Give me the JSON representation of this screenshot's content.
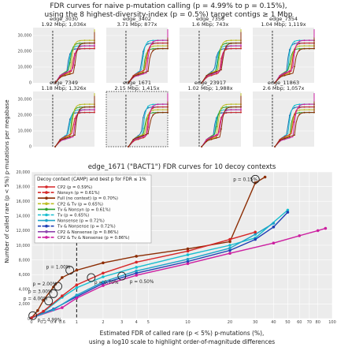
{
  "figure": {
    "title_line1": "FDR curves for naive p-mutation calling (p = 4.99% to p = 0.15%),",
    "title_line2": "using the 8 highest-diversity-index (p = 0.5%) target contigs ≥ 1 Mbp",
    "ylabel": "Number of called rare (p < 5%) p-mutations per megabase"
  },
  "chart_data": [
    {
      "type": "line",
      "title": "edge_3030",
      "subtitle": "1.92 Mbp; 1,036x",
      "yticks": [
        "0",
        "10,000",
        "20,000",
        "30,000"
      ],
      "ylim": [
        0,
        35000
      ]
    },
    {
      "type": "line",
      "title": "edge_3402",
      "subtitle": "3.71 Mbp; 877x",
      "ylim": [
        0,
        35000
      ]
    },
    {
      "type": "line",
      "title": "edge_7356",
      "subtitle": "1.6 Mbp; 743x",
      "ylim": [
        0,
        35000
      ]
    },
    {
      "type": "line",
      "title": "edge_7354",
      "subtitle": "1.04 Mbp; 1,119x",
      "ylim": [
        0,
        35000
      ]
    },
    {
      "type": "line",
      "title": "edge_7349",
      "subtitle": "1.18 Mbp; 1,326x",
      "yticks": [
        "0",
        "10,000",
        "20,000",
        "30,000"
      ],
      "ylim": [
        0,
        35000
      ]
    },
    {
      "type": "line",
      "title": "edge_1671",
      "subtitle": "2.15 Mbp; 1,415x",
      "ylim": [
        0,
        35000
      ]
    },
    {
      "type": "line",
      "title": "edge_23917",
      "subtitle": "1.02 Mbp; 1,988x",
      "ylim": [
        0,
        35000
      ]
    },
    {
      "type": "line",
      "title": "edge_11863",
      "subtitle": "2.6 Mbp; 1,057x",
      "ylim": [
        0,
        35000
      ]
    },
    {
      "type": "line",
      "title": "edge_1671 (\"BACT1\") FDR curves for 10 decoy contexts",
      "xlabel": "Estimated FDR of called rare (p < 5%) p-mutations (%),",
      "xlabel2": "using a log10 scale to highlight order-of-magnitude differences",
      "xticks": [
        "0",
        "0.2",
        "0.4",
        "0.6",
        "1",
        "2",
        "3",
        "4",
        "5",
        "10",
        "20",
        "30",
        "40",
        "50",
        "60",
        "70",
        "80",
        "100"
      ],
      "yticks": [
        "0",
        "2,000",
        "4,000",
        "6,000",
        "8,000",
        "10,000",
        "12,000",
        "14,000",
        "16,000",
        "18,000",
        "20,000"
      ],
      "ylim": [
        0,
        20000
      ],
      "grid": true,
      "fdr_threshold_percent": 1,
      "legend": {
        "title": "Decoy context (CAMP) and best p for FDR ≤ 1%",
        "placement": "top-left",
        "entries": [
          {
            "label": "CP2 (p = 0.59%)",
            "color": "#d62728"
          },
          {
            "label": "Nonsyn (p = 0.61%)",
            "color": "#d62728"
          },
          {
            "label": "Full (no context) (p = 0.70%)",
            "color": "#8c2d04"
          },
          {
            "label": "CP2 & Tv (p = 0.65%)",
            "color": "#bcbd22"
          },
          {
            "label": "Tv & Nonsyn (p = 0.61%)",
            "color": "#2ca02c"
          },
          {
            "label": "Tv (p = 0.65%)",
            "color": "#17becf"
          },
          {
            "label": "Nonsense (p = 0.72%)",
            "color": "#1fa3c9"
          },
          {
            "label": "Tv & Nonsense (p = 0.72%)",
            "color": "#1f3fb4"
          },
          {
            "label": "CP2 & Nonsense (p = 0.86%)",
            "color": "#8e44ad"
          },
          {
            "label": "CP2 & Tv & Nonsense (p = 0.86%)",
            "color": "#cc1fa0"
          }
        ]
      },
      "annotations": [
        "p = 0.15%",
        "p = 1.00%",
        "p = 0.70%",
        "p = 0.50%",
        "p = 2.00%",
        "p = 3.00%",
        "p = 4.00%",
        "p = 4.99%"
      ],
      "series": [
        {
          "name": "Full (no context)",
          "color": "#8c2d04",
          "x": [
            0,
            0.1,
            0.2,
            0.4,
            0.6,
            1,
            2,
            4,
            10,
            20,
            30,
            35
          ],
          "y": [
            100,
            1100,
            2500,
            4300,
            5600,
            6600,
            7600,
            8500,
            9500,
            10500,
            18500,
            19300
          ]
        },
        {
          "name": "Tv",
          "color": "#17becf",
          "x": [
            0,
            0.2,
            0.6,
            1,
            2,
            4,
            10,
            20,
            30,
            50
          ],
          "y": [
            100,
            900,
            2900,
            4200,
            5700,
            7000,
            8700,
            10000,
            11000,
            14800
          ]
        },
        {
          "name": "Tv & Nonsense",
          "color": "#1f3fb4",
          "x": [
            0,
            0.4,
            1,
            2,
            4,
            10,
            20,
            30,
            40,
            50
          ],
          "y": [
            100,
            1300,
            3000,
            4800,
            6200,
            7800,
            9300,
            10800,
            12500,
            14500
          ]
        },
        {
          "name": "CP2 & Tv & Nonsense",
          "color": "#cc1fa0",
          "x": [
            0,
            0.6,
            1,
            2,
            4,
            10,
            20,
            40,
            60,
            80,
            90
          ],
          "y": [
            100,
            1500,
            2800,
            4500,
            5900,
            7500,
            8900,
            10300,
            11300,
            12000,
            12300
          ]
        },
        {
          "name": "Nonsense",
          "color": "#1fa3c9",
          "x": [
            0,
            0.4,
            1,
            2,
            4,
            10,
            20,
            30,
            40
          ],
          "y": [
            100,
            1200,
            3200,
            5000,
            6500,
            8100,
            9600,
            11500,
            13000
          ]
        },
        {
          "name": "CP2",
          "color": "#d62728",
          "x": [
            0,
            0.2,
            0.6,
            1,
            2,
            4,
            10,
            20,
            30
          ],
          "y": [
            100,
            1000,
            3100,
            4600,
            6200,
            7700,
            9200,
            10800,
            11800
          ]
        }
      ]
    }
  ]
}
